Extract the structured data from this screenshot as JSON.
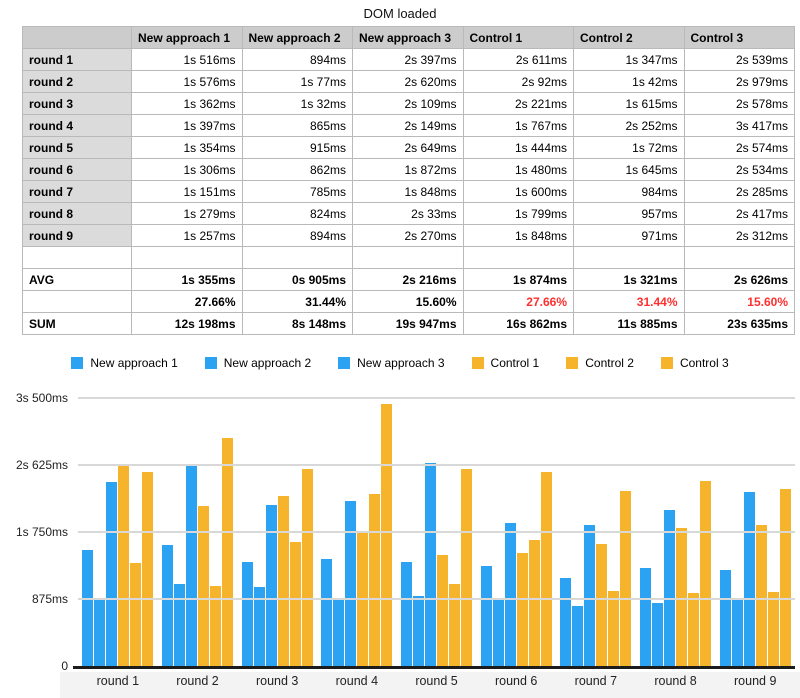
{
  "title": "DOM loaded",
  "table": {
    "corner_label": "",
    "columns": [
      "New approach 1",
      "New approach 2",
      "New approach 3",
      "Control 1",
      "Control 2",
      "Control 3"
    ],
    "rows": [
      {
        "label": "round 1",
        "values": [
          "1s 516ms",
          "894ms",
          "2s 397ms",
          "2s 611ms",
          "1s 347ms",
          "2s 539ms"
        ]
      },
      {
        "label": "round 2",
        "values": [
          "1s 576ms",
          "1s 77ms",
          "2s 620ms",
          "2s 92ms",
          "1s 42ms",
          "2s 979ms"
        ]
      },
      {
        "label": "round 3",
        "values": [
          "1s 362ms",
          "1s 32ms",
          "2s 109ms",
          "2s 221ms",
          "1s 615ms",
          "2s 578ms"
        ]
      },
      {
        "label": "round 4",
        "values": [
          "1s 397ms",
          "865ms",
          "2s 149ms",
          "1s 767ms",
          "2s 252ms",
          "3s 417ms"
        ]
      },
      {
        "label": "round 5",
        "values": [
          "1s 354ms",
          "915ms",
          "2s 649ms",
          "1s 444ms",
          "1s 72ms",
          "2s 574ms"
        ]
      },
      {
        "label": "round 6",
        "values": [
          "1s 306ms",
          "862ms",
          "1s 872ms",
          "1s 480ms",
          "1s 645ms",
          "2s 534ms"
        ]
      },
      {
        "label": "round 7",
        "values": [
          "1s 151ms",
          "785ms",
          "1s 848ms",
          "1s 600ms",
          "984ms",
          "2s 285ms"
        ]
      },
      {
        "label": "round 8",
        "values": [
          "1s 279ms",
          "824ms",
          "2s 33ms",
          "1s 799ms",
          "957ms",
          "2s 417ms"
        ]
      },
      {
        "label": "round 9",
        "values": [
          "1s 257ms",
          "894ms",
          "2s 270ms",
          "1s 848ms",
          "971ms",
          "2s 312ms"
        ]
      }
    ],
    "spacer_row": {
      "label": "",
      "values": [
        "",
        "",
        "",
        "",
        "",
        ""
      ]
    },
    "summary_rows": [
      {
        "label": "AVG",
        "values": [
          "1s 355ms",
          "0s 905ms",
          "2s 216ms",
          "1s 874ms",
          "1s 321ms",
          "2s 626ms"
        ],
        "red_indexes": []
      },
      {
        "label": "",
        "values": [
          "27.66%",
          "31.44%",
          "15.60%",
          "27.66%",
          "31.44%",
          "15.60%"
        ],
        "red_indexes": [
          3,
          4,
          5
        ]
      },
      {
        "label": "SUM",
        "values": [
          "12s 198ms",
          "8s 148ms",
          "19s 947ms",
          "16s 862ms",
          "11s 885ms",
          "23s 635ms"
        ],
        "red_indexes": []
      }
    ]
  },
  "chart_data": {
    "type": "bar",
    "title": "DOM loaded",
    "categories": [
      "round 1",
      "round 2",
      "round 3",
      "round 4",
      "round 5",
      "round 6",
      "round 7",
      "round 8",
      "round 9"
    ],
    "series": [
      {
        "name": "New approach 1",
        "color": "#2ba2f2",
        "values_ms": [
          1516,
          1576,
          1362,
          1397,
          1354,
          1306,
          1151,
          1279,
          1257
        ]
      },
      {
        "name": "New approach 2",
        "color": "#2ba2f2",
        "values_ms": [
          894,
          1077,
          1032,
          865,
          915,
          862,
          785,
          824,
          894
        ]
      },
      {
        "name": "New approach 3",
        "color": "#2ba2f2",
        "values_ms": [
          2397,
          2620,
          2109,
          2149,
          2649,
          1872,
          1848,
          2033,
          2270
        ]
      },
      {
        "name": "Control 1",
        "color": "#f6b42c",
        "values_ms": [
          2611,
          2092,
          2221,
          1767,
          1444,
          1480,
          1600,
          1799,
          1848
        ]
      },
      {
        "name": "Control 2",
        "color": "#f6b42c",
        "values_ms": [
          1347,
          1042,
          1615,
          2252,
          1072,
          1645,
          984,
          957,
          971
        ]
      },
      {
        "name": "Control 3",
        "color": "#f6b42c",
        "values_ms": [
          2539,
          2979,
          2578,
          3417,
          2574,
          2534,
          2285,
          2417,
          2312
        ]
      }
    ],
    "ylim_ms": [
      0,
      3500
    ],
    "y_ticks": [
      {
        "label": "3s 500ms",
        "ms": 3500
      },
      {
        "label": "2s 625ms",
        "ms": 2625
      },
      {
        "label": "1s 750ms",
        "ms": 1750
      },
      {
        "label": "875ms",
        "ms": 875
      },
      {
        "label": "0",
        "ms": 0
      }
    ],
    "grid": true,
    "legend_position": "top",
    "xlabel": "",
    "ylabel": ""
  },
  "colors": {
    "series_blue": "#2ba2f2",
    "series_orange": "#f6b42c",
    "negative_red": "#ff2f2f",
    "header_bg": "#cccccc",
    "row_header_bg": "#dbdbdb",
    "gridline": "#d8d8d8"
  }
}
